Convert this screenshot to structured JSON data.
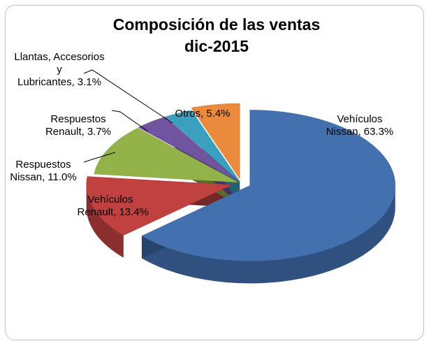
{
  "chart_data": {
    "type": "pie",
    "title": "Composición de las ventas dic-2015",
    "categories": [
      "Vehículos Nissan",
      "Vehículos Renault",
      "Respuestos Nissan",
      "Respuestos Renault",
      "Llantas, Accesorios y Lubricantes",
      "Otros"
    ],
    "values": [
      63.3,
      13.4,
      11.0,
      3.7,
      3.1,
      5.4
    ],
    "value_labels": [
      "63.3%",
      "13.4%",
      "11.0%",
      "3.7%",
      "3.1%",
      "5.4%"
    ],
    "colors": [
      "#4371b0",
      "#c0413f",
      "#93b24a",
      "#7154a0",
      "#3aa0bd",
      "#ea8a3c"
    ]
  }
}
